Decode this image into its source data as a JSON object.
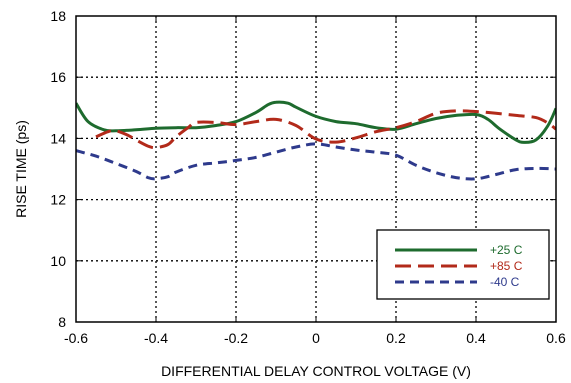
{
  "chart_data": {
    "type": "line",
    "xlabel": "DIFFERENTIAL DELAY CONTROL VOLTAGE (V)",
    "ylabel": "RISE TIME (ps)",
    "xlim": [
      -0.6,
      0.6
    ],
    "ylim": [
      8,
      18
    ],
    "xticks": [
      "-0.6",
      "-0.4",
      "-0.2",
      "0",
      "0.2",
      "0.4",
      "0.6"
    ],
    "yticks": [
      "8",
      "10",
      "12",
      "14",
      "16",
      "18"
    ],
    "grid": true,
    "legend_position": "bottom-right",
    "series": [
      {
        "name": "+25 C",
        "color": "#1e6b2e",
        "dash": "solid",
        "x": [
          -0.6,
          -0.57,
          -0.53,
          -0.5,
          -0.45,
          -0.4,
          -0.35,
          -0.3,
          -0.25,
          -0.2,
          -0.15,
          -0.12,
          -0.1,
          -0.07,
          -0.05,
          0.0,
          0.05,
          0.1,
          0.15,
          0.2,
          0.25,
          0.3,
          0.35,
          0.4,
          0.43,
          0.46,
          0.5,
          0.52,
          0.55,
          0.58,
          0.6
        ],
        "y": [
          15.15,
          14.55,
          14.28,
          14.25,
          14.28,
          14.33,
          14.35,
          14.35,
          14.42,
          14.55,
          14.85,
          15.1,
          15.18,
          15.15,
          15.02,
          14.72,
          14.55,
          14.48,
          14.35,
          14.3,
          14.48,
          14.65,
          14.75,
          14.78,
          14.62,
          14.3,
          13.95,
          13.87,
          13.95,
          14.42,
          14.98
        ]
      },
      {
        "name": "+85 C",
        "color": "#b22a1a",
        "dash": "long",
        "x": [
          -0.55,
          -0.52,
          -0.5,
          -0.47,
          -0.45,
          -0.42,
          -0.4,
          -0.37,
          -0.35,
          -0.32,
          -0.3,
          -0.25,
          -0.2,
          -0.15,
          -0.1,
          -0.05,
          0.0,
          0.05,
          0.1,
          0.15,
          0.2,
          0.25,
          0.3,
          0.35,
          0.4,
          0.45,
          0.5,
          0.55,
          0.58,
          0.6
        ],
        "y": [
          14.05,
          14.22,
          14.25,
          14.1,
          13.95,
          13.75,
          13.7,
          13.8,
          14.05,
          14.35,
          14.52,
          14.52,
          14.45,
          14.55,
          14.62,
          14.42,
          13.98,
          13.88,
          14.02,
          14.22,
          14.35,
          14.55,
          14.82,
          14.9,
          14.88,
          14.82,
          14.75,
          14.68,
          14.5,
          14.3
        ]
      },
      {
        "name": "-40 C",
        "color": "#2e3a8c",
        "dash": "short",
        "x": [
          -0.6,
          -0.55,
          -0.5,
          -0.45,
          -0.42,
          -0.4,
          -0.37,
          -0.35,
          -0.3,
          -0.25,
          -0.2,
          -0.15,
          -0.1,
          -0.05,
          0.0,
          0.05,
          0.1,
          0.15,
          0.2,
          0.25,
          0.3,
          0.35,
          0.4,
          0.45,
          0.5,
          0.55,
          0.6
        ],
        "y": [
          13.6,
          13.42,
          13.18,
          12.92,
          12.72,
          12.68,
          12.75,
          12.9,
          13.12,
          13.2,
          13.28,
          13.38,
          13.55,
          13.72,
          13.82,
          13.72,
          13.62,
          13.55,
          13.45,
          13.12,
          12.88,
          12.72,
          12.68,
          12.82,
          12.98,
          13.02,
          13.0
        ]
      }
    ]
  }
}
